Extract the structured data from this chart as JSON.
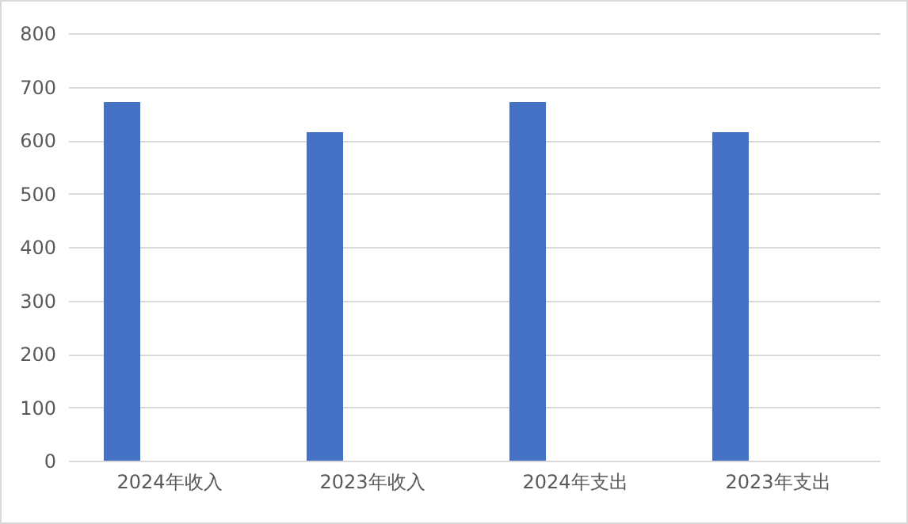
{
  "chart_data": {
    "type": "bar",
    "categories": [
      "2024年收入",
      "2023年收入",
      "2024年支出",
      "2023年支出"
    ],
    "values": [
      671,
      615,
      671,
      615
    ],
    "color": "#4472c4",
    "ylim": [
      0,
      800
    ],
    "yticks": [
      0,
      100,
      200,
      300,
      400,
      500,
      600,
      700,
      800
    ],
    "grid": "y"
  }
}
